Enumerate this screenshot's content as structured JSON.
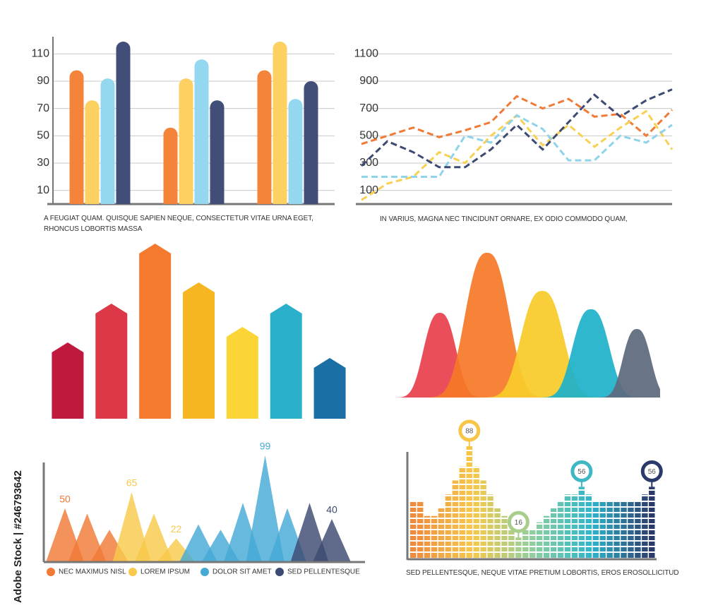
{
  "chart_data": [
    {
      "type": "bar",
      "caption": "A FEUGIAT QUAM. QUISQUE SAPIEN NEQUE, CONSECTETUR VITAE URNA EGET, RHONCUS LOBORTIS MASSA",
      "categories": [
        null,
        null,
        null
      ],
      "series": [
        {
          "color": "#f5843b",
          "values": [
            98,
            56,
            98
          ]
        },
        {
          "color": "#fcd061",
          "values": [
            76,
            92,
            119
          ]
        },
        {
          "color": "#93d8ee",
          "values": [
            92,
            106,
            77
          ]
        },
        {
          "color": "#414e78",
          "values": [
            119,
            76,
            90
          ]
        }
      ],
      "ylim": [
        0,
        120
      ],
      "yticks": [
        10,
        30,
        50,
        70,
        90,
        110
      ],
      "grid": true
    },
    {
      "type": "line",
      "caption": "IN VARIUS, MAGNA NEC TINCIDUNT ORNARE, EX ODIO COMMODO QUAM,",
      "categories": [
        null,
        null,
        null,
        null,
        null,
        null,
        null,
        null,
        null,
        null,
        null,
        null,
        null
      ],
      "series": [
        {
          "color": "#f07a36",
          "values": [
            440,
            500,
            560,
            490,
            540,
            600,
            790,
            700,
            770,
            640,
            660,
            500,
            690
          ]
        },
        {
          "color": "#f8d054",
          "values": [
            30,
            150,
            200,
            380,
            300,
            500,
            650,
            430,
            580,
            420,
            560,
            680,
            400
          ]
        },
        {
          "color": "#8fd3ea",
          "values": [
            200,
            200,
            200,
            200,
            500,
            450,
            650,
            550,
            320,
            320,
            500,
            450,
            580
          ]
        },
        {
          "color": "#3d4a72",
          "values": [
            280,
            460,
            380,
            270,
            270,
            400,
            580,
            400,
            600,
            800,
            640,
            760,
            840
          ]
        }
      ],
      "ylim": [
        0,
        1200
      ],
      "yticks": [
        100,
        300,
        500,
        700,
        900,
        1100
      ],
      "grid": true,
      "dashed": true
    },
    {
      "type": "arrow",
      "categories": [
        null,
        null,
        null,
        null,
        null,
        null,
        null
      ],
      "values": [
        108,
        163,
        248,
        193,
        130,
        163,
        86
      ],
      "colors": [
        "#c0193f",
        "#dc3848",
        "#f57a30",
        "#f6b622",
        "#fbd535",
        "#2bb0cb",
        "#1a6fa5"
      ]
    },
    {
      "type": "bell",
      "categories": [
        null,
        null,
        null,
        null,
        null
      ],
      "values": [
        120,
        205,
        151,
        125,
        97
      ],
      "colors": [
        "#e8414f",
        "#f57a28",
        "#f9cb2a",
        "#1eb2c9",
        "#5e6a7e"
      ]
    },
    {
      "type": "triangle",
      "series": [
        {
          "name": "NEC MAXIMUS NISL",
          "color": "#f07a36",
          "values": [
            50,
            45,
            30
          ],
          "labeled": [
            0
          ]
        },
        {
          "name": "LOREM IPSUM",
          "color": "#f8c94a",
          "values": [
            65,
            45,
            22
          ],
          "labeled": [
            0,
            2
          ]
        },
        {
          "name": "DOLOR SIT AMET",
          "color": "#45aad6",
          "values": [
            35,
            30,
            55,
            99,
            50
          ],
          "labeled": [
            3
          ]
        },
        {
          "name": "SED PELLENTESQUE",
          "color": "#3d4a72",
          "values": [
            55,
            40
          ],
          "labeled": [
            1
          ]
        }
      ],
      "legend": "bottom"
    },
    {
      "type": "column",
      "caption": "SED PELLENTESQUE, NEQUE VITAE PRETIUM LOBORTIS, EROS EROSOLLICITUD",
      "values": [
        45,
        45,
        33,
        33,
        39,
        50,
        61,
        72,
        88,
        72,
        61,
        50,
        39,
        33,
        22,
        16,
        22,
        22,
        28,
        33,
        39,
        44,
        50,
        50,
        56,
        50,
        44,
        44,
        44,
        44,
        44,
        44,
        44,
        50,
        56
      ],
      "labeled": [
        8,
        15,
        24,
        34
      ],
      "colors": [
        "#f08a3c",
        "#f7c948",
        "#8fcf9f",
        "#2fb3cb",
        "#2b3a6b"
      ]
    }
  ],
  "watermark": "Adobe Stock | #246793642"
}
